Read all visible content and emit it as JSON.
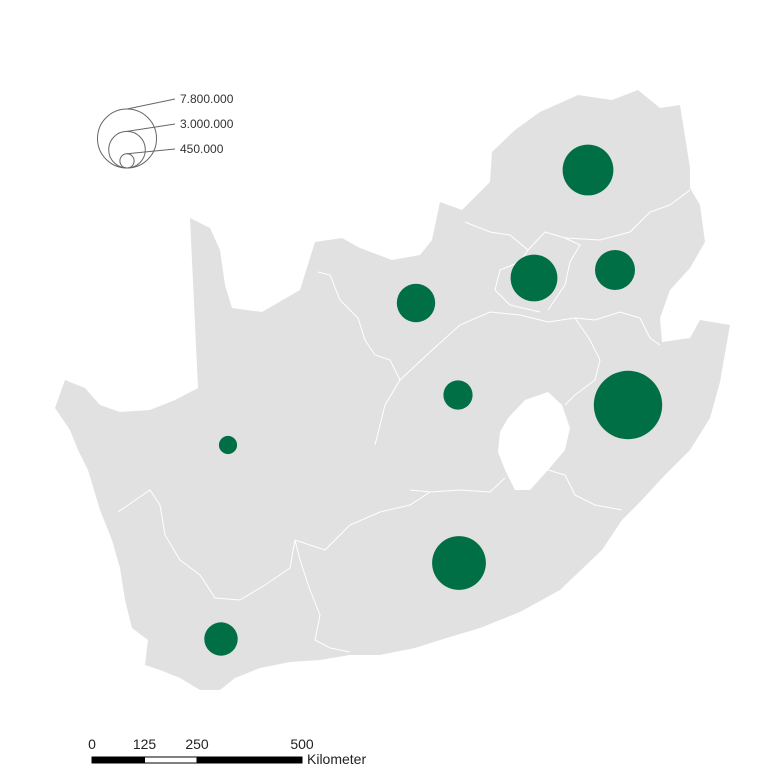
{
  "legend": {
    "items": [
      {
        "label": "7.800.000",
        "value": 7800000
      },
      {
        "label": "3.000.000",
        "value": 3000000
      },
      {
        "label": "450.000",
        "value": 450000
      }
    ],
    "symbol_color": "#666666"
  },
  "scale_bar": {
    "tick_labels": [
      "0",
      "125",
      "250",
      "500"
    ],
    "unit": "Kilometer"
  },
  "colors": {
    "land": "#e1e1e1",
    "province_border": "#ffffff",
    "proportional_symbol": "#006f45",
    "lesotho": "#ffffff"
  },
  "symbols": [
    {
      "region": "northern",
      "value": 5800000
    },
    {
      "region": "gauteng",
      "value": 4900000
    },
    {
      "region": "mpumalanga",
      "value": 3600000
    },
    {
      "region": "north-west",
      "value": 3300000
    },
    {
      "region": "free-state",
      "value": 1900000
    },
    {
      "region": "kwazulu-natal",
      "value": 10500000
    },
    {
      "region": "northern-cape",
      "value": 750000
    },
    {
      "region": "eastern-cape",
      "value": 6500000
    },
    {
      "region": "western-cape",
      "value": 2500000
    }
  ]
}
